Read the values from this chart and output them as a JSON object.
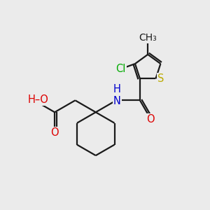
{
  "bg_color": "#ebebeb",
  "bond_color": "#1a1a1a",
  "bond_width": 1.6,
  "atom_colors": {
    "O": "#dd0000",
    "N": "#0000cc",
    "S": "#bbaa00",
    "Cl": "#00aa00",
    "H": "#888888",
    "C": "#1a1a1a"
  },
  "font_size": 10.5
}
